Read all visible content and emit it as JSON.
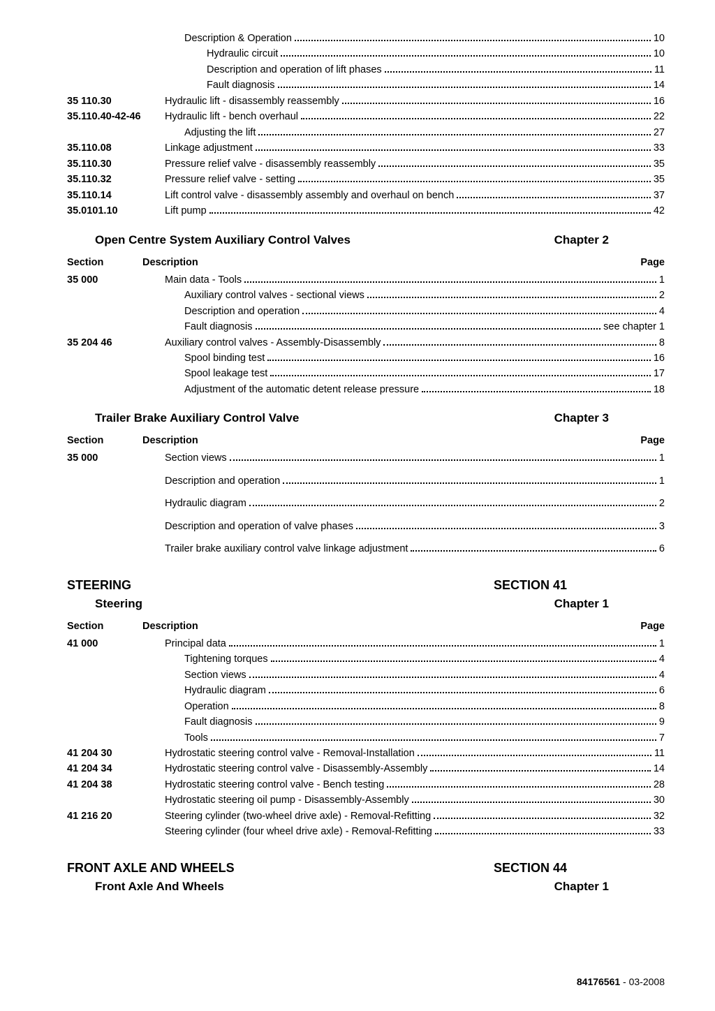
{
  "indent_label": 108,
  "indent_sub1": 168,
  "indent_sub2": 200,
  "block1": [
    {
      "label": "",
      "indent": 168,
      "text": "Description & Operation",
      "page": "10"
    },
    {
      "label": "",
      "indent": 200,
      "text": "Hydraulic circuit",
      "page": "10"
    },
    {
      "label": "",
      "indent": 200,
      "text": "Description and operation of lift phases",
      "page": "11"
    },
    {
      "label": "",
      "indent": 200,
      "text": "Fault diagnosis",
      "page": "14"
    },
    {
      "label": "35 110.30",
      "indent": 140,
      "text": "Hydraulic lift - disassembly reassembly",
      "page": "16"
    },
    {
      "label": "35.110.40-42-46",
      "indent": 140,
      "text": "Hydraulic lift - bench overhaul",
      "page": "22"
    },
    {
      "label": "",
      "indent": 168,
      "text": "Adjusting the lift",
      "page": "27"
    },
    {
      "label": "35.110.08",
      "indent": 140,
      "text": "Linkage adjustment",
      "page": "33"
    },
    {
      "label": "35.110.30",
      "indent": 140,
      "text": "Pressure relief valve - disassembly reassembly",
      "page": "35"
    },
    {
      "label": "35.110.32",
      "indent": 140,
      "text": "Pressure relief valve - setting",
      "page": "35"
    },
    {
      "label": "35.110.14",
      "indent": 140,
      "text": "Lift control valve - disassembly assembly and overhaul on bench",
      "page": "37"
    },
    {
      "label": "35.0101.10",
      "indent": 140,
      "text": "Lift pump",
      "page": "42"
    }
  ],
  "ch2": {
    "title_left": "Open Centre System Auxiliary Control Valves",
    "title_right": "Chapter 2",
    "cols": [
      "Section",
      "Description",
      "Page"
    ],
    "rows": [
      {
        "label": "35 000",
        "indent": 140,
        "text": "Main data - Tools",
        "page": "1"
      },
      {
        "label": "",
        "indent": 168,
        "text": "Auxiliary control valves - sectional views",
        "page": "2"
      },
      {
        "label": "",
        "indent": 168,
        "text": "Description and operation",
        "page": "4"
      },
      {
        "label": "",
        "indent": 168,
        "text": "Fault diagnosis",
        "page": "see chapter 1"
      },
      {
        "label": "35 204 46",
        "indent": 140,
        "text": "Auxiliary control valves - Assembly-Disassembly",
        "page": "8"
      },
      {
        "label": "",
        "indent": 168,
        "text": "Spool binding test",
        "page": "16"
      },
      {
        "label": "",
        "indent": 168,
        "text": "Spool leakage test",
        "page": "17"
      },
      {
        "label": "",
        "indent": 168,
        "text": "Adjustment of the automatic detent release pressure",
        "page": "18"
      }
    ]
  },
  "ch3": {
    "title_left": "Trailer Brake Auxiliary Control Valve",
    "title_right": "Chapter 3",
    "cols": [
      "Section",
      "Description",
      "Page"
    ],
    "rows": [
      {
        "label": "35 000",
        "indent": 140,
        "text": "Section views",
        "page": "1"
      },
      {
        "label": "",
        "indent": 140,
        "text": "Description and operation",
        "page": "1"
      },
      {
        "label": "",
        "indent": 140,
        "text": "Hydraulic diagram",
        "page": "2"
      },
      {
        "label": "",
        "indent": 140,
        "text": "Description and operation of valve phases",
        "page": "3"
      },
      {
        "label": "",
        "indent": 140,
        "text": "Trailer brake auxiliary control valve linkage adjustment",
        "page": "6"
      }
    ],
    "row_gap": 10
  },
  "steering_section": {
    "left": "STEERING",
    "right": "SECTION 41"
  },
  "steering_ch1": {
    "title_left": "Steering",
    "title_right": "Chapter 1",
    "cols": [
      "Section",
      "Description",
      "Page"
    ],
    "rows": [
      {
        "label": "41 000",
        "indent": 140,
        "text": "Principal data",
        "page": "1"
      },
      {
        "label": "",
        "indent": 168,
        "text": "Tightening torques",
        "page": "4"
      },
      {
        "label": "",
        "indent": 168,
        "text": "Section views",
        "page": "4"
      },
      {
        "label": "",
        "indent": 168,
        "text": "Hydraulic diagram",
        "page": "6"
      },
      {
        "label": "",
        "indent": 168,
        "text": "Operation",
        "page": "8"
      },
      {
        "label": "",
        "indent": 168,
        "text": "Fault diagnosis",
        "page": "9"
      },
      {
        "label": "",
        "indent": 168,
        "text": "Tools",
        "page": "7"
      },
      {
        "label": "41 204 30",
        "indent": 140,
        "text": "Hydrostatic steering control valve - Removal-Installation",
        "page": "11"
      },
      {
        "label": "41 204 34",
        "indent": 140,
        "text": "Hydrostatic steering control valve - Disassembly-Assembly",
        "page": "14"
      },
      {
        "label": "41 204 38",
        "indent": 140,
        "text": "Hydrostatic steering control valve - Bench testing",
        "page": "28"
      },
      {
        "label": "",
        "indent": 140,
        "text": "Hydrostatic steering oil pump - Disassembly-Assembly",
        "page": "30"
      },
      {
        "label": "41 216 20",
        "indent": 140,
        "text": "Steering cylinder (two-wheel drive axle) - Removal-Refitting",
        "page": "32"
      },
      {
        "label": "",
        "indent": 140,
        "text": "Steering cylinder (four wheel drive axle) - Removal-Refitting",
        "page": "33"
      }
    ]
  },
  "front_axle_section": {
    "left": "FRONT AXLE AND WHEELS",
    "right": "SECTION 44"
  },
  "front_axle_ch1": {
    "title_left": "Front Axle And Wheels",
    "title_right": "Chapter 1"
  },
  "footer": {
    "bold": "84176561",
    "rest": " -  03-2008"
  }
}
